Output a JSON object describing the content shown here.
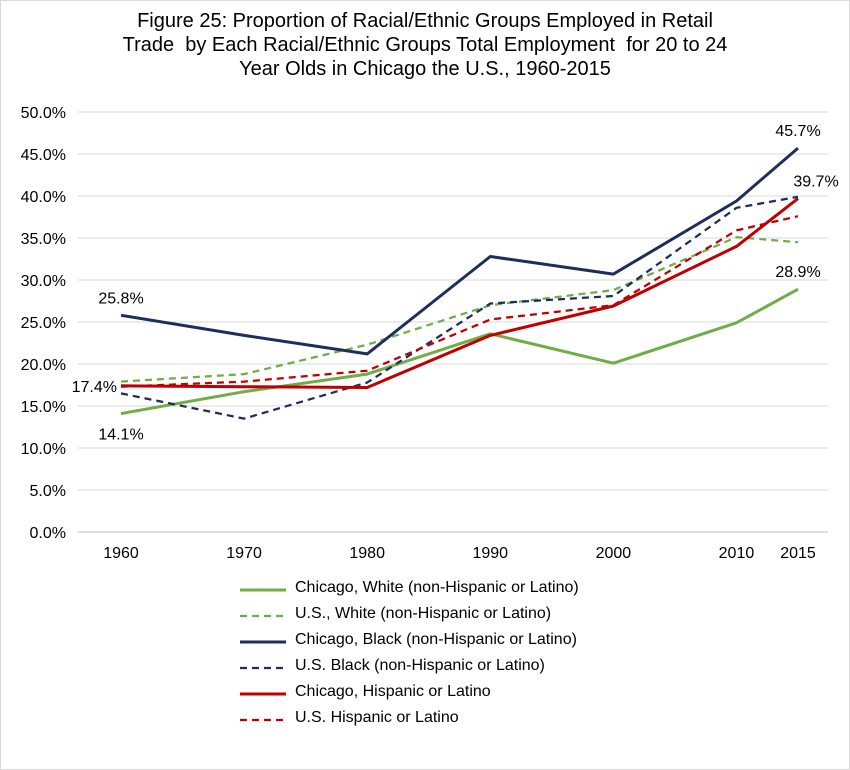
{
  "chart_data": {
    "type": "line",
    "title_lines": [
      "Figure 25: Proportion of Racial/Ethnic Groups Employed in Retail",
      "Trade  by Each Racial/Ethnic Groups Total Employment  for 20 to 24",
      "Year Olds in Chicago the U.S., 1960-2015"
    ],
    "x": [
      1960,
      1970,
      1980,
      1990,
      2000,
      2010,
      2015
    ],
    "ylim": [
      0,
      50
    ],
    "y_ticks": [
      0,
      5,
      10,
      15,
      20,
      25,
      30,
      35,
      40,
      45,
      50
    ],
    "y_tick_labels": [
      "0.0%",
      "5.0%",
      "10.0%",
      "15.0%",
      "20.0%",
      "25.0%",
      "30.0%",
      "35.0%",
      "40.0%",
      "45.0%",
      "50.0%"
    ],
    "x_tick_labels": [
      "1960",
      "1970",
      "1980",
      "1990",
      "2000",
      "2010",
      "2015"
    ],
    "grid": true,
    "legend_position": "bottom",
    "series": [
      {
        "name": "Chicago, White (non-Hispanic or Latino)",
        "color": "#70ad47",
        "dash": false,
        "values": [
          14.1,
          16.7,
          18.8,
          23.6,
          20.1,
          24.9,
          28.9
        ]
      },
      {
        "name": "U.S., White (non-Hispanic or Latino)",
        "color": "#70ad47",
        "dash": true,
        "values": [
          17.9,
          18.8,
          22.3,
          27.0,
          28.8,
          35.1,
          34.5
        ]
      },
      {
        "name": "Chicago, Black (non-Hispanic or Latino)",
        "color": "#1f2d5c",
        "dash": false,
        "values": [
          25.8,
          23.4,
          21.2,
          32.8,
          30.7,
          39.4,
          45.7
        ]
      },
      {
        "name": "U.S. Black (non-Hispanic or Latino)",
        "color": "#1f2d5c",
        "dash": true,
        "values": [
          16.5,
          13.5,
          17.8,
          27.2,
          28.1,
          38.6,
          39.9
        ]
      },
      {
        "name": "Chicago, Hispanic or Latino",
        "color": "#c00000",
        "dash": false,
        "values": [
          17.4,
          17.3,
          17.2,
          23.4,
          26.9,
          34.0,
          39.7
        ]
      },
      {
        "name": "U.S. Hispanic or Latino",
        "color": "#c00000",
        "dash": true,
        "values": [
          17.3,
          17.9,
          19.2,
          25.3,
          27.0,
          35.9,
          37.6
        ]
      }
    ],
    "annotations": [
      {
        "text": "25.8%",
        "series": 2,
        "index": 0,
        "pos": "above"
      },
      {
        "text": "17.4%",
        "series": 4,
        "index": 0,
        "pos": "left"
      },
      {
        "text": "14.1%",
        "series": 0,
        "index": 0,
        "pos": "below"
      },
      {
        "text": "45.7%",
        "series": 2,
        "index": 6,
        "pos": "above"
      },
      {
        "text": "39.7%",
        "series": 4,
        "index": 6,
        "pos": "above-right"
      },
      {
        "text": "28.9%",
        "series": 0,
        "index": 6,
        "pos": "above"
      }
    ]
  }
}
